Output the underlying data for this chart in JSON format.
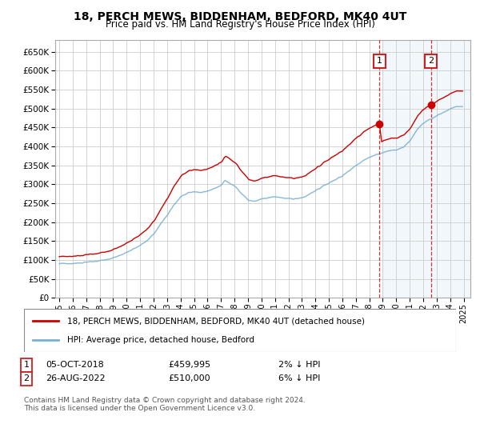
{
  "title": "18, PERCH MEWS, BIDDENHAM, BEDFORD, MK40 4UT",
  "subtitle": "Price paid vs. HM Land Registry's House Price Index (HPI)",
  "background_color": "#ffffff",
  "plot_bg_color": "#ffffff",
  "grid_color": "#cccccc",
  "line1_color": "#cc0000",
  "line2_color": "#7ab0d4",
  "highlight_bg": "#ddeeff",
  "annotation1": {
    "label": "1",
    "date_x": 2018.75,
    "price": 459995,
    "text": "05-OCT-2018",
    "amount": "£459,995",
    "pct": "2% ↓ HPI"
  },
  "annotation2": {
    "label": "2",
    "date_x": 2022.65,
    "price": 510000,
    "text": "26-AUG-2022",
    "amount": "£510,000",
    "pct": "6% ↓ HPI"
  },
  "legend1": "18, PERCH MEWS, BIDDENHAM, BEDFORD, MK40 4UT (detached house)",
  "legend2": "HPI: Average price, detached house, Bedford",
  "footnote": "Contains HM Land Registry data © Crown copyright and database right 2024.\nThis data is licensed under the Open Government Licence v3.0.",
  "ylim": [
    0,
    680000
  ],
  "yticks": [
    0,
    50000,
    100000,
    150000,
    200000,
    250000,
    300000,
    350000,
    400000,
    450000,
    500000,
    550000,
    600000,
    650000
  ],
  "xmin": 1994.7,
  "xmax": 2025.5
}
